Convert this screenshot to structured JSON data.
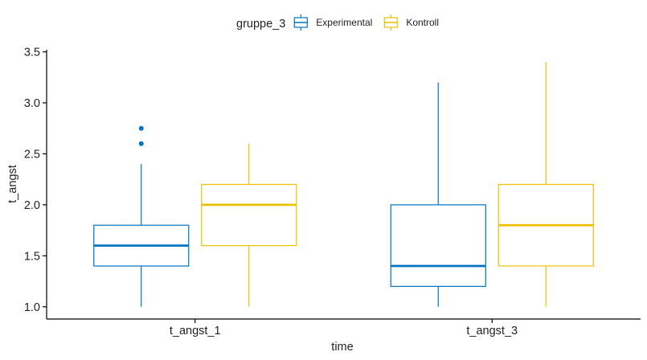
{
  "chart_data": {
    "type": "boxplot",
    "title": "",
    "xlabel": "time",
    "ylabel": "t_angst",
    "ylim": [
      0.88,
      3.52
    ],
    "yticks": [
      1.0,
      1.5,
      2.0,
      2.5,
      3.0,
      3.5
    ],
    "ytick_labels": [
      "1.0",
      "1.5",
      "2.0",
      "2.5",
      "3.0",
      "3.5"
    ],
    "categories": [
      "t_angst_1",
      "t_angst_3"
    ],
    "grid": false,
    "legend": {
      "position": "top",
      "title": "gruppe_3",
      "entries": [
        "Experimental",
        "Kontroll"
      ]
    },
    "series": [
      {
        "name": "Experimental",
        "color": "#0073C2",
        "boxes": [
          {
            "category": "t_angst_1",
            "min": 1.0,
            "q1": 1.4,
            "median": 1.6,
            "q3": 1.8,
            "max": 2.4,
            "outliers": [
              2.6,
              2.75
            ]
          },
          {
            "category": "t_angst_3",
            "min": 1.0,
            "q1": 1.2,
            "median": 1.4,
            "q3": 2.0,
            "max": 3.2,
            "outliers": []
          }
        ]
      },
      {
        "name": "Kontroll",
        "color": "#EFC000",
        "boxes": [
          {
            "category": "t_angst_1",
            "min": 1.0,
            "q1": 1.6,
            "median": 2.0,
            "q3": 2.2,
            "max": 2.6,
            "outliers": []
          },
          {
            "category": "t_angst_3",
            "min": 1.0,
            "q1": 1.4,
            "median": 1.8,
            "q3": 2.2,
            "max": 3.4,
            "outliers": []
          }
        ]
      }
    ]
  }
}
